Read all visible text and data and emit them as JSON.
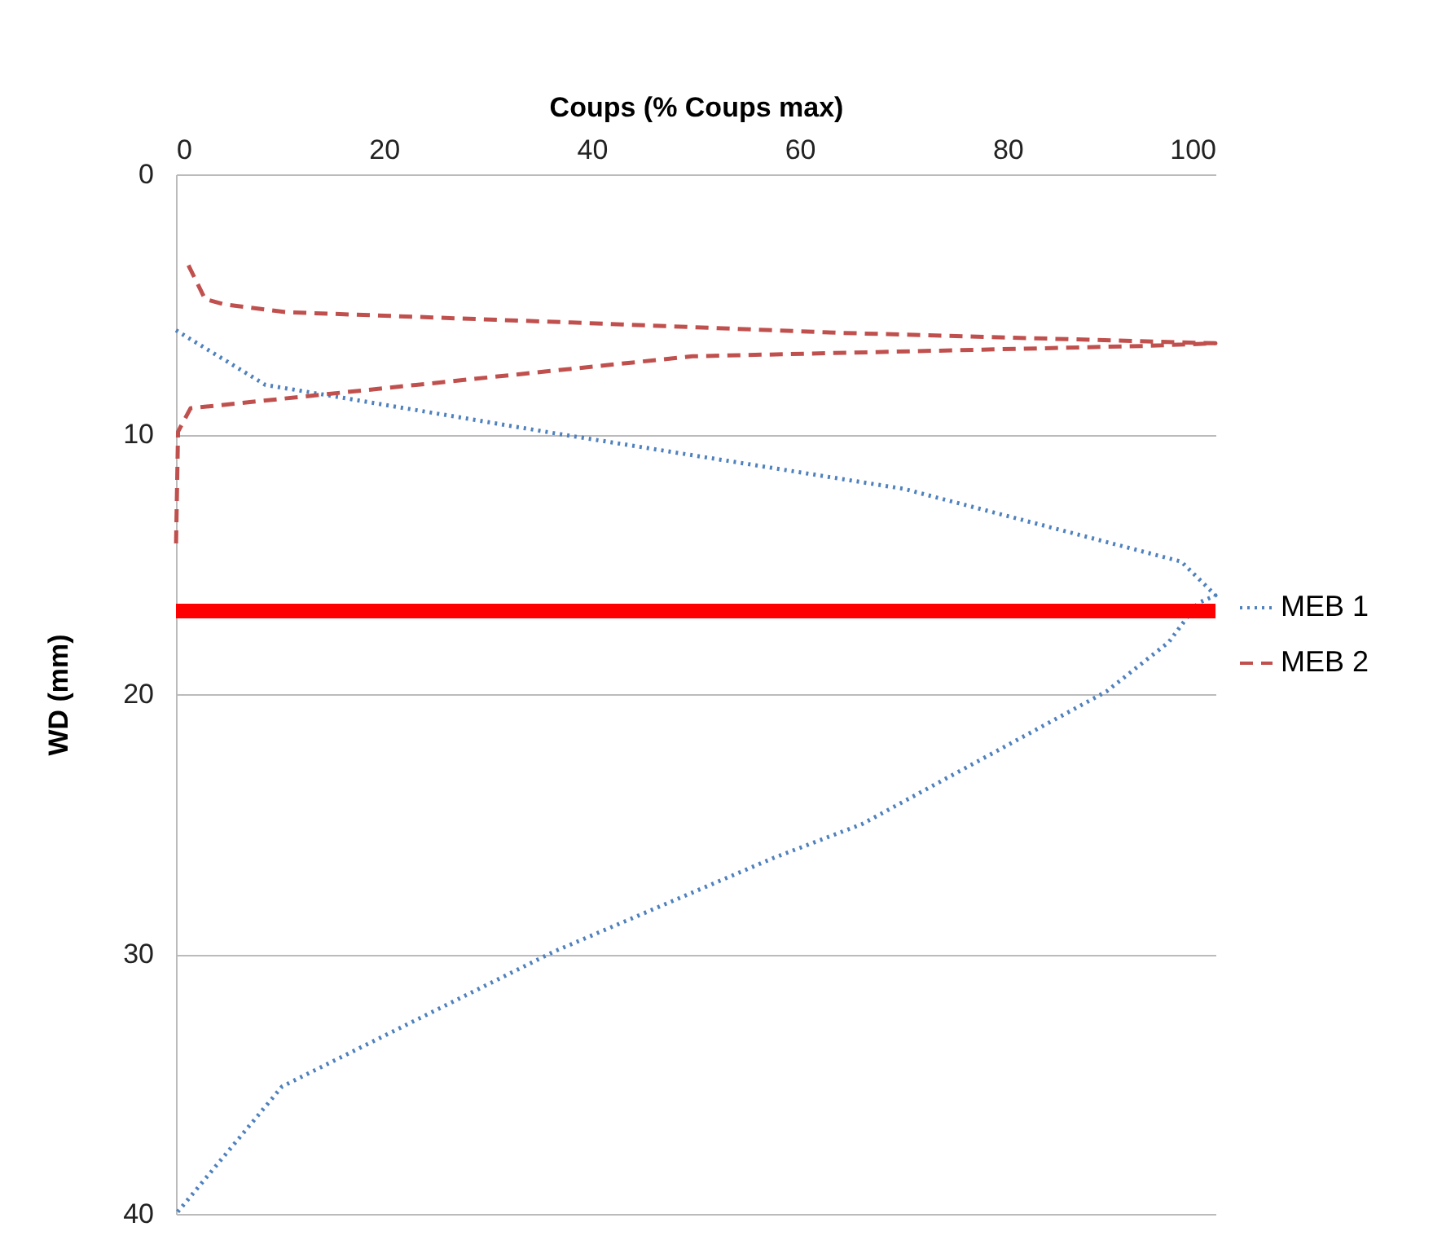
{
  "chart_data": {
    "type": "line",
    "orientation": "horizontal",
    "xlabel": "Coups (% Coups max)",
    "ylabel": "WD (mm)",
    "xlim": [
      0,
      100
    ],
    "xticks": [
      0,
      20,
      40,
      60,
      80,
      100
    ],
    "ylim": [
      40,
      0
    ],
    "yticks": [
      0,
      10,
      20,
      30,
      40
    ],
    "grid": "y",
    "legend": "right",
    "series": [
      {
        "name": "MEB 1",
        "color": "#4f81bd",
        "line_style": "dotted",
        "x": [
          6.0,
          8.1,
          10.0,
          12.1,
          14.9,
          15.8,
          16.2,
          16.5,
          18.0,
          19.9,
          25.0,
          26.3,
          29.9,
          35.1,
          40
        ],
        "values": [
          0,
          8.6,
          37,
          70,
          96.7,
          99,
          100,
          98.3,
          95.5,
          89.5,
          66,
          57.5,
          36.4,
          10.2,
          0
        ]
      },
      {
        "name": "MEB 2",
        "color": "#c0504d",
        "line_style": "dashed",
        "x": [
          3.5,
          4.8,
          5.0,
          5.3,
          5.7,
          6.1,
          6.5,
          6.6,
          7.0,
          9.0,
          9.9,
          14.4
        ],
        "values": [
          1.2,
          2.8,
          4.6,
          10.5,
          38,
          64,
          100,
          93.4,
          49.7,
          1.4,
          0.2,
          0
        ]
      }
    ],
    "ref_lines": [
      {
        "axis": "y",
        "value": 16.8,
        "color": "#ff0000"
      }
    ]
  }
}
